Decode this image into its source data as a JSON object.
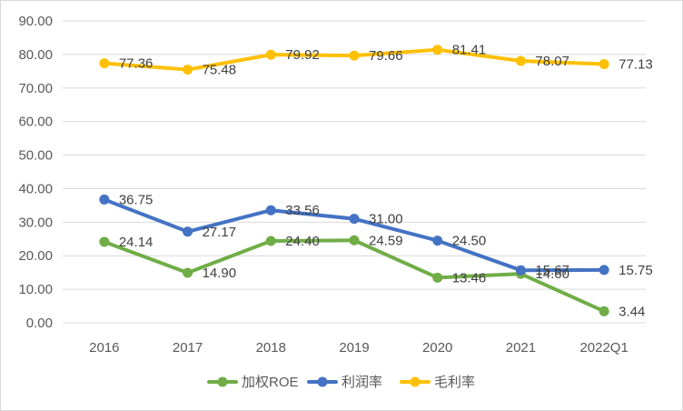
{
  "chart_data": {
    "type": "line",
    "categories": [
      "2016",
      "2017",
      "2018",
      "2019",
      "2020",
      "2021",
      "2022Q1"
    ],
    "series": [
      {
        "name": "加权ROE",
        "color": "#70ad47",
        "values": [
          24.14,
          14.9,
          24.4,
          24.59,
          13.46,
          14.6,
          3.44
        ],
        "labels": [
          "24.14",
          "14.90",
          "24.40",
          "24.59",
          "13.46",
          "14.60",
          "3.44"
        ]
      },
      {
        "name": "利润率",
        "color": "#4472c4",
        "values": [
          36.75,
          27.17,
          33.56,
          31.0,
          24.5,
          15.67,
          15.75
        ],
        "labels": [
          "36.75",
          "27.17",
          "33.56",
          "31.00",
          "24.50",
          "15.67",
          "15.75"
        ]
      },
      {
        "name": "毛利率",
        "color": "#ffc000",
        "values": [
          77.36,
          75.48,
          79.92,
          79.66,
          81.41,
          78.07,
          77.13
        ],
        "labels": [
          "77.36",
          "75.48",
          "79.92",
          "79.66",
          "81.41",
          "78.07",
          "77.13"
        ]
      }
    ],
    "yticks": [
      "0.00",
      "10.00",
      "20.00",
      "30.00",
      "40.00",
      "50.00",
      "60.00",
      "70.00",
      "80.00",
      "90.00"
    ],
    "ylim": [
      0,
      90
    ],
    "grid": true,
    "legend": "bottom"
  }
}
